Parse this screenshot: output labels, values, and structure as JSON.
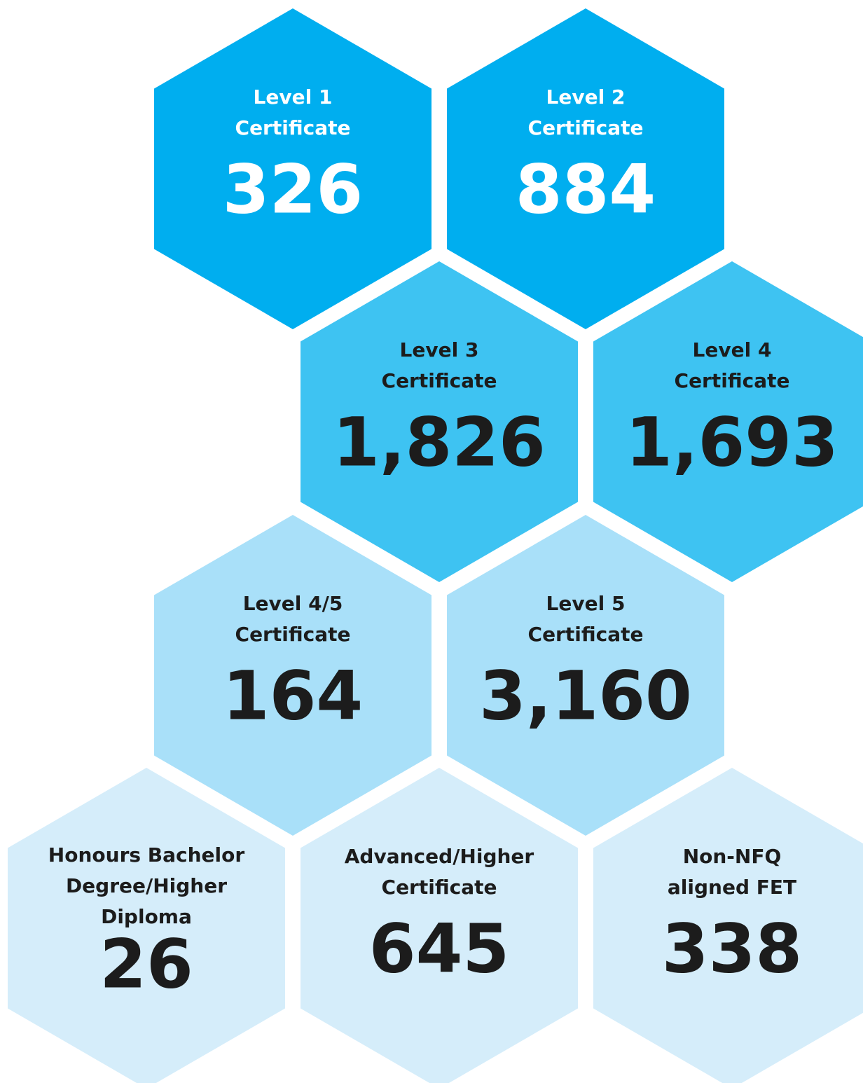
{
  "hexagons": [
    {
      "label": [
        "Level 1",
        "Certificate"
      ],
      "value": "326"
    },
    {
      "label": [
        "Level 2",
        "Certificate"
      ],
      "value": "884"
    },
    {
      "label": [
        "Level 3",
        "Certificate"
      ],
      "value": "1,826"
    },
    {
      "label": [
        "Level 4",
        "Certificate"
      ],
      "value": "1,693"
    },
    {
      "label": [
        "Level 4/5",
        "Certificate"
      ],
      "value": "164"
    },
    {
      "label": [
        "Level 5",
        "Certificate"
      ],
      "value": "3,160"
    },
    {
      "label": [
        "Honours Bachelor",
        "Degree/Higher",
        "Diploma"
      ],
      "value": "26"
    },
    {
      "label": [
        "Advanced/Higher",
        "Certificate"
      ],
      "value": "645"
    },
    {
      "label": [
        "Non-NFQ",
        "aligned FET"
      ],
      "value": "338"
    }
  ]
}
